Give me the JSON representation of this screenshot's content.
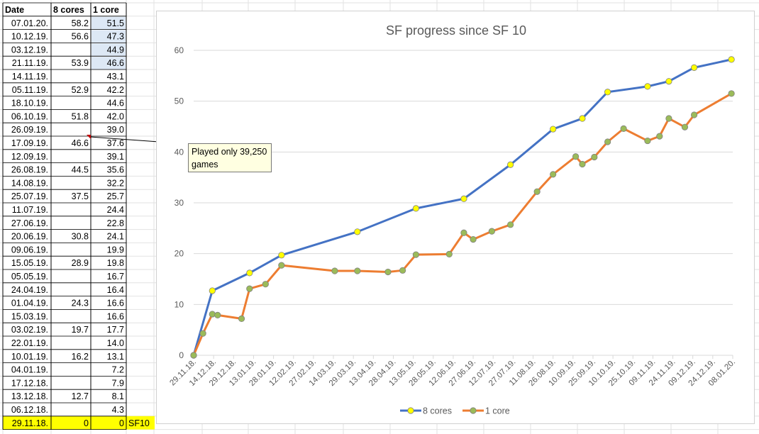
{
  "sheet": {
    "headers": [
      "Date",
      "8 cores",
      "1 core"
    ],
    "rows": [
      {
        "date": "07.01.20.",
        "c8": "58.2",
        "c1": "51.5"
      },
      {
        "date": "10.12.19.",
        "c8": "56.6",
        "c1": "47.3"
      },
      {
        "date": "03.12.19.",
        "c8": "",
        "c1": "44.9"
      },
      {
        "date": "21.11.19.",
        "c8": "53.9",
        "c1": "46.6"
      },
      {
        "date": "14.11.19.",
        "c8": "",
        "c1": "43.1"
      },
      {
        "date": "05.11.19.",
        "c8": "52.9",
        "c1": "42.2"
      },
      {
        "date": "18.10.19.",
        "c8": "",
        "c1": "44.6"
      },
      {
        "date": "06.10.19.",
        "c8": "51.8",
        "c1": "42.0"
      },
      {
        "date": "26.09.19.",
        "c8": "",
        "c1": "39.0"
      },
      {
        "date": "17.09.19.",
        "c8": "46.6",
        "c1": "37.6"
      },
      {
        "date": "12.09.19.",
        "c8": "",
        "c1": "39.1"
      },
      {
        "date": "26.08.19.",
        "c8": "44.5",
        "c1": "35.6"
      },
      {
        "date": "14.08.19.",
        "c8": "",
        "c1": "32.2"
      },
      {
        "date": "25.07.19.",
        "c8": "37.5",
        "c1": "25.7"
      },
      {
        "date": "11.07.19.",
        "c8": "",
        "c1": "24.4"
      },
      {
        "date": "27.06.19.",
        "c8": "",
        "c1": "22.8"
      },
      {
        "date": "20.06.19.",
        "c8": "30.8",
        "c1": "24.1"
      },
      {
        "date": "09.06.19.",
        "c8": "",
        "c1": "19.9"
      },
      {
        "date": "15.05.19.",
        "c8": "28.9",
        "c1": "19.8"
      },
      {
        "date": "05.05.19.",
        "c8": "",
        "c1": "16.7"
      },
      {
        "date": "24.04.19.",
        "c8": "",
        "c1": "16.4"
      },
      {
        "date": "01.04.19.",
        "c8": "24.3",
        "c1": "16.6"
      },
      {
        "date": "15.03.19.",
        "c8": "",
        "c1": "16.6"
      },
      {
        "date": "03.02.19.",
        "c8": "19.7",
        "c1": "17.7"
      },
      {
        "date": "22.01.19.",
        "c8": "",
        "c1": "14.0"
      },
      {
        "date": "10.01.19.",
        "c8": "16.2",
        "c1": "13.1"
      },
      {
        "date": "04.01.19.",
        "c8": "",
        "c1": "7.2"
      },
      {
        "date": "17.12.18.",
        "c8": "",
        "c1": "7.9"
      },
      {
        "date": "13.12.18.",
        "c8": "12.7",
        "c1": "8.1"
      },
      {
        "date": "06.12.18.",
        "c8": "",
        "c1": "4.3"
      },
      {
        "date": "29.11.18.",
        "c8": "0",
        "c1": "0"
      }
    ],
    "baseline_label": "SF10",
    "comment": "Played only 39,250 games",
    "highlight_color": "#ffff00",
    "selected_fill": "#dde8f5"
  },
  "chart_data": {
    "type": "line",
    "title": "SF progress since SF 10",
    "xlabel": "",
    "ylabel": "",
    "ylim": [
      0,
      60
    ],
    "yticks": [
      0,
      10,
      20,
      30,
      40,
      50,
      60
    ],
    "xlim": [
      "29.11.18.",
      "08.01.20."
    ],
    "xticks": [
      "29.11.18.",
      "14.12.18.",
      "29.12.18.",
      "13.01.19.",
      "28.01.19.",
      "12.02.19.",
      "27.02.19.",
      "14.03.19.",
      "29.03.19.",
      "13.04.19.",
      "28.04.19.",
      "13.05.19.",
      "28.05.19.",
      "12.06.19.",
      "27.06.19.",
      "12.07.19.",
      "27.07.19.",
      "11.08.19.",
      "26.08.19.",
      "10.09.19.",
      "25.09.19.",
      "10.10.19.",
      "25.10.19.",
      "09.11.19.",
      "24.11.19.",
      "09.12.19.",
      "24.12.19.",
      "08.01.20."
    ],
    "grid": true,
    "legend": "bottom",
    "series": [
      {
        "name": "8 cores",
        "color": "#4472c4",
        "marker_color": "#ffff00",
        "points": [
          [
            "29.11.18.",
            0
          ],
          [
            "13.12.18.",
            12.7
          ],
          [
            "10.01.19.",
            16.2
          ],
          [
            "03.02.19.",
            19.7
          ],
          [
            "01.04.19.",
            24.3
          ],
          [
            "15.05.19.",
            28.9
          ],
          [
            "20.06.19.",
            30.8
          ],
          [
            "25.07.19.",
            37.5
          ],
          [
            "26.08.19.",
            44.5
          ],
          [
            "17.09.19.",
            46.6
          ],
          [
            "06.10.19.",
            51.8
          ],
          [
            "05.11.19.",
            52.9
          ],
          [
            "21.11.19.",
            53.9
          ],
          [
            "10.12.19.",
            56.6
          ],
          [
            "07.01.20.",
            58.2
          ]
        ]
      },
      {
        "name": "1 core",
        "color": "#ed7d31",
        "marker_color": "#9bbb59",
        "points": [
          [
            "29.11.18.",
            0
          ],
          [
            "06.12.18.",
            4.3
          ],
          [
            "13.12.18.",
            8.1
          ],
          [
            "17.12.18.",
            7.9
          ],
          [
            "04.01.19.",
            7.2
          ],
          [
            "10.01.19.",
            13.1
          ],
          [
            "22.01.19.",
            14.0
          ],
          [
            "03.02.19.",
            17.7
          ],
          [
            "15.03.19.",
            16.6
          ],
          [
            "01.04.19.",
            16.6
          ],
          [
            "24.04.19.",
            16.4
          ],
          [
            "05.05.19.",
            16.7
          ],
          [
            "15.05.19.",
            19.8
          ],
          [
            "09.06.19.",
            19.9
          ],
          [
            "20.06.19.",
            24.1
          ],
          [
            "27.06.19.",
            22.8
          ],
          [
            "11.07.19.",
            24.4
          ],
          [
            "25.07.19.",
            25.7
          ],
          [
            "14.08.19.",
            32.2
          ],
          [
            "26.08.19.",
            35.6
          ],
          [
            "12.09.19.",
            39.1
          ],
          [
            "17.09.19.",
            37.6
          ],
          [
            "26.09.19.",
            39.0
          ],
          [
            "06.10.19.",
            42.0
          ],
          [
            "18.10.19.",
            44.6
          ],
          [
            "05.11.19.",
            42.2
          ],
          [
            "14.11.19.",
            43.1
          ],
          [
            "21.11.19.",
            46.6
          ],
          [
            "03.12.19.",
            44.9
          ],
          [
            "10.12.19.",
            47.3
          ],
          [
            "07.01.20.",
            51.5
          ]
        ]
      }
    ]
  }
}
